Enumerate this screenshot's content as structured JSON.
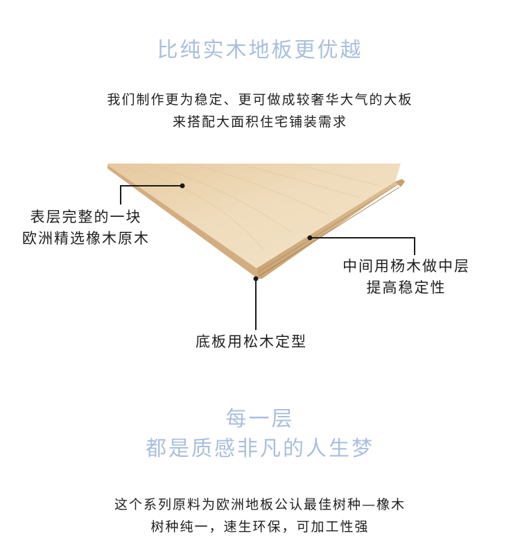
{
  "top": {
    "headline": "比纯实木地板更优越",
    "paragraph": [
      "我们制作更为稳定、更可做成较奢华大气的大板",
      "来搭配大面积住宅铺装需求"
    ]
  },
  "callouts": {
    "top_layer": [
      "表层完整的一块",
      "欧洲精选橡木原木"
    ],
    "middle_layer": [
      "中间用杨木做中层",
      "提高稳定性"
    ],
    "bottom_layer": "底板用松木定型"
  },
  "bottom": {
    "headline_line1": "每一层",
    "headline_line2": "都是质感非凡的人生梦",
    "paragraph": [
      "这个系列原料为欧洲地板公认最佳树种—橡木",
      "树种纯一，速生环保，可加工性强"
    ]
  },
  "colors": {
    "headline": "#a9bfdc",
    "text": "#1e1e1e",
    "wood_top": "#ecd6b4",
    "wood_edge": "#d8b98e"
  }
}
